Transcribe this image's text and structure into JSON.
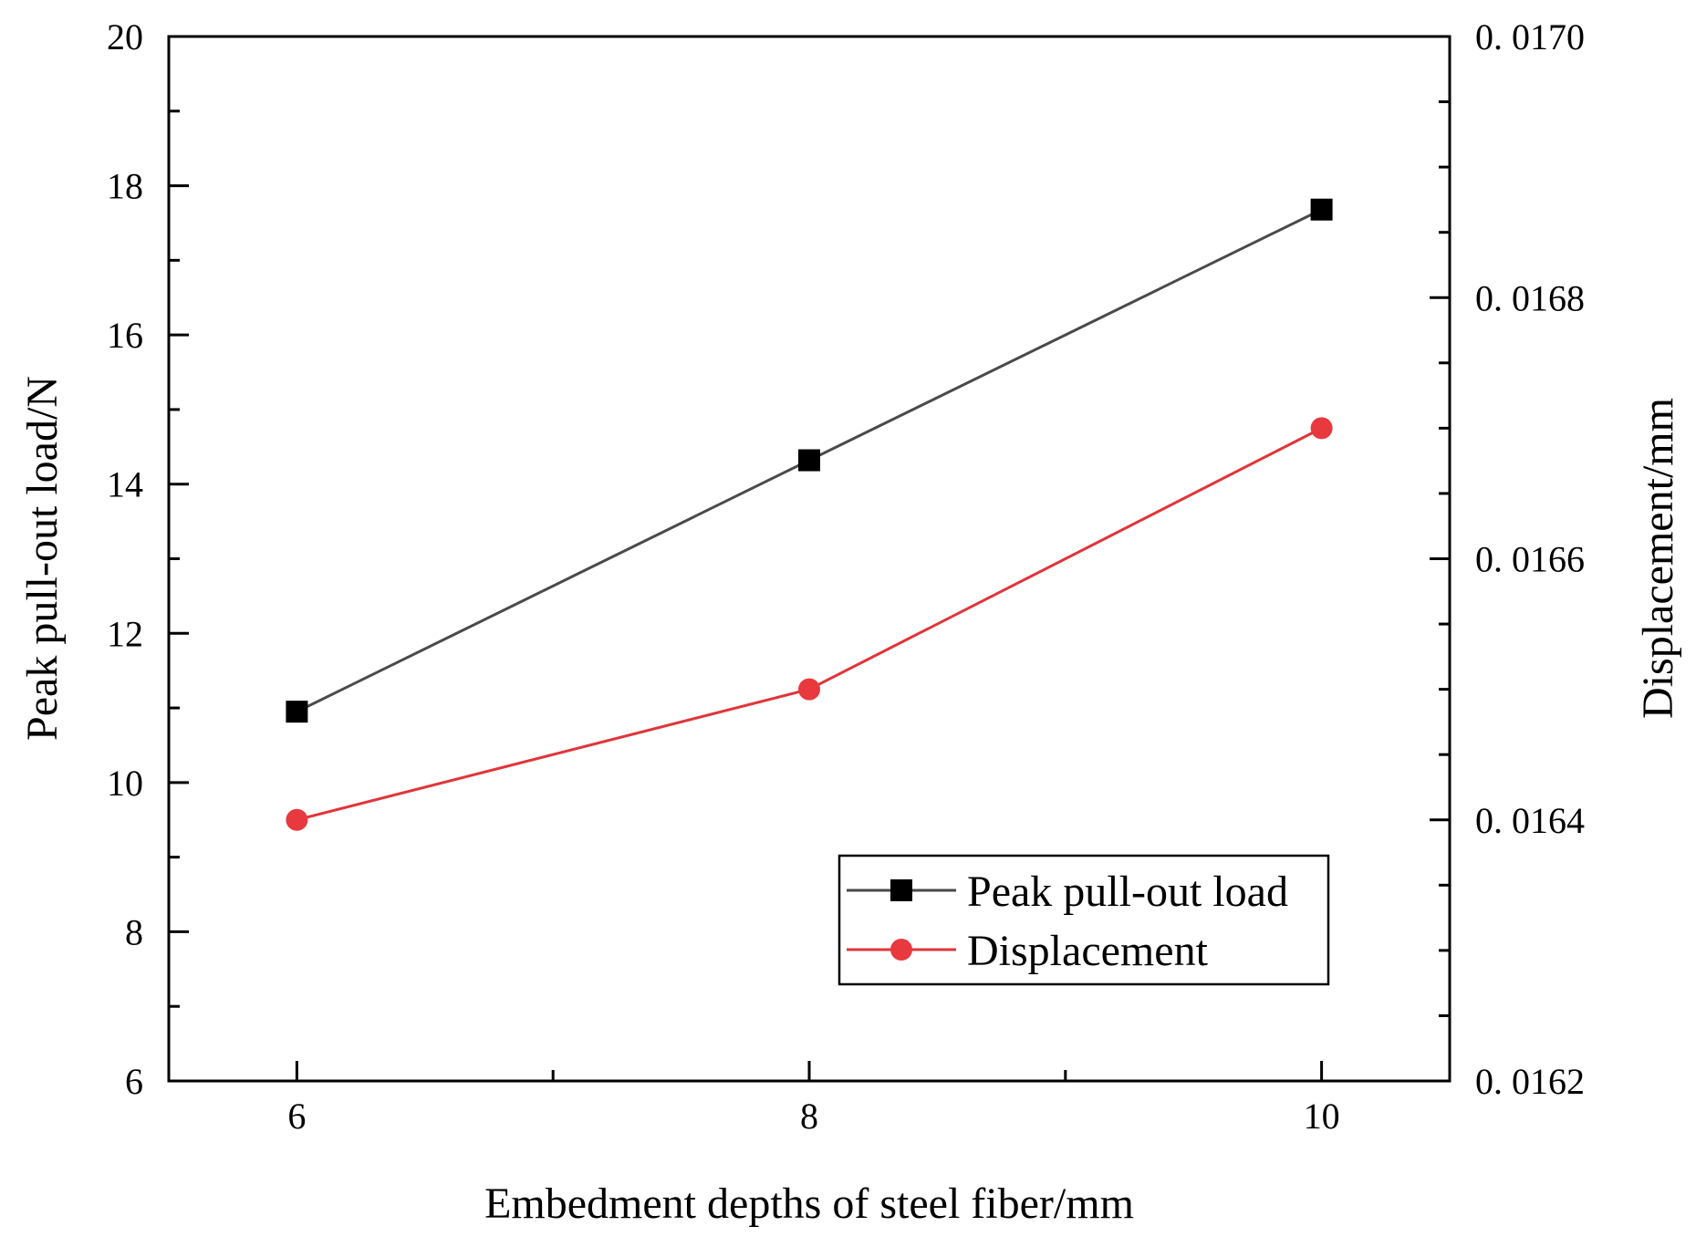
{
  "chart_data": {
    "type": "line",
    "x": [
      6,
      8,
      10
    ],
    "x_ticks": [
      "6",
      "8",
      "10"
    ],
    "xlabel": "Embedment depths of steel fiber/mm",
    "xlim": [
      5.5,
      10.5
    ],
    "y_left": {
      "label": "Peak pull-out load/N",
      "lim": [
        6,
        20
      ],
      "ticks": [
        "6",
        "8",
        "10",
        "12",
        "14",
        "16",
        "18",
        "20"
      ]
    },
    "y_right": {
      "label": "Displacement/mm",
      "lim": [
        0.0162,
        0.017
      ],
      "ticks": [
        "0. 0162",
        "0. 0164",
        "0. 0166",
        "0. 0168",
        "0. 0170"
      ]
    },
    "series": [
      {
        "name": "Peak pull-out load",
        "axis": "left",
        "marker": "square",
        "color": "#4a4a4a",
        "marker_color": "#000000",
        "values": [
          10.95,
          14.32,
          17.68
        ]
      },
      {
        "name": "Displacement",
        "axis": "right",
        "marker": "circle",
        "color": "#e0353a",
        "marker_color": "#e8393e",
        "values": [
          0.0164,
          0.0165,
          0.0167
        ]
      }
    ],
    "legend_position": "bottom-right"
  }
}
